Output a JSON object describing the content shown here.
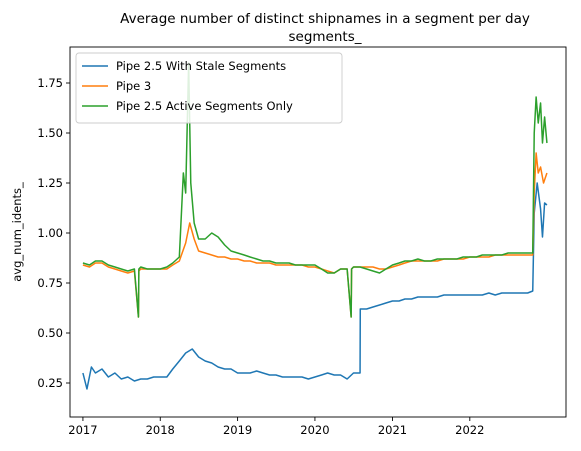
{
  "chart_data": {
    "type": "line",
    "title_line1": "Average number of distinct shipnames in a segment per day",
    "title_line2": "segments_",
    "xlabel": "",
    "ylabel": "avg_num_idents_",
    "x_range": [
      "2016-11-01",
      "2023-03-31"
    ],
    "ylim": [
      0.08,
      1.93
    ],
    "x_ticks": [
      {
        "date": "2017-01-01",
        "label": "2017"
      },
      {
        "date": "2018-01-01",
        "label": "2018"
      },
      {
        "date": "2019-01-01",
        "label": "2019"
      },
      {
        "date": "2020-01-01",
        "label": "2020"
      },
      {
        "date": "2021-01-01",
        "label": "2021"
      },
      {
        "date": "2022-01-01",
        "label": "2022"
      }
    ],
    "y_ticks": [
      {
        "value": 0.25,
        "label": "0.25"
      },
      {
        "value": 0.5,
        "label": "0.50"
      },
      {
        "value": 0.75,
        "label": "0.75"
      },
      {
        "value": 1.0,
        "label": "1.00"
      },
      {
        "value": 1.25,
        "label": "1.25"
      },
      {
        "value": 1.5,
        "label": "1.50"
      },
      {
        "value": 1.75,
        "label": "1.75"
      }
    ],
    "grid": false,
    "legend_position": "upper-left",
    "series": [
      {
        "name": "Pipe 2.5 With Stale Segments",
        "color": "#1f77b4",
        "points": [
          [
            "2017-01-01",
            0.3
          ],
          [
            "2017-01-20",
            0.22
          ],
          [
            "2017-02-10",
            0.33
          ],
          [
            "2017-03-01",
            0.3
          ],
          [
            "2017-04-01",
            0.32
          ],
          [
            "2017-05-01",
            0.28
          ],
          [
            "2017-06-01",
            0.3
          ],
          [
            "2017-07-01",
            0.27
          ],
          [
            "2017-08-01",
            0.28
          ],
          [
            "2017-09-01",
            0.26
          ],
          [
            "2017-10-01",
            0.27
          ],
          [
            "2017-11-01",
            0.27
          ],
          [
            "2017-12-01",
            0.28
          ],
          [
            "2018-01-01",
            0.28
          ],
          [
            "2018-02-01",
            0.28
          ],
          [
            "2018-03-01",
            0.32
          ],
          [
            "2018-04-01",
            0.36
          ],
          [
            "2018-05-01",
            0.4
          ],
          [
            "2018-06-01",
            0.42
          ],
          [
            "2018-07-01",
            0.38
          ],
          [
            "2018-08-01",
            0.36
          ],
          [
            "2018-09-01",
            0.35
          ],
          [
            "2018-10-01",
            0.33
          ],
          [
            "2018-11-01",
            0.32
          ],
          [
            "2018-12-01",
            0.32
          ],
          [
            "2019-01-01",
            0.3
          ],
          [
            "2019-02-01",
            0.3
          ],
          [
            "2019-03-01",
            0.3
          ],
          [
            "2019-04-01",
            0.31
          ],
          [
            "2019-05-01",
            0.3
          ],
          [
            "2019-06-01",
            0.29
          ],
          [
            "2019-07-01",
            0.29
          ],
          [
            "2019-08-01",
            0.28
          ],
          [
            "2019-09-01",
            0.28
          ],
          [
            "2019-10-01",
            0.28
          ],
          [
            "2019-11-01",
            0.28
          ],
          [
            "2019-12-01",
            0.27
          ],
          [
            "2020-01-01",
            0.28
          ],
          [
            "2020-02-01",
            0.29
          ],
          [
            "2020-03-01",
            0.3
          ],
          [
            "2020-04-01",
            0.29
          ],
          [
            "2020-05-01",
            0.29
          ],
          [
            "2020-06-01",
            0.27
          ],
          [
            "2020-07-01",
            0.3
          ],
          [
            "2020-08-01",
            0.3
          ],
          [
            "2020-08-02",
            0.62
          ],
          [
            "2020-09-01",
            0.62
          ],
          [
            "2020-10-01",
            0.63
          ],
          [
            "2020-11-01",
            0.64
          ],
          [
            "2020-12-01",
            0.65
          ],
          [
            "2021-01-01",
            0.66
          ],
          [
            "2021-02-01",
            0.66
          ],
          [
            "2021-03-01",
            0.67
          ],
          [
            "2021-04-01",
            0.67
          ],
          [
            "2021-05-01",
            0.68
          ],
          [
            "2021-06-01",
            0.68
          ],
          [
            "2021-07-01",
            0.68
          ],
          [
            "2021-08-01",
            0.68
          ],
          [
            "2021-09-01",
            0.69
          ],
          [
            "2021-10-01",
            0.69
          ],
          [
            "2021-11-01",
            0.69
          ],
          [
            "2021-12-01",
            0.69
          ],
          [
            "2022-01-01",
            0.69
          ],
          [
            "2022-02-01",
            0.69
          ],
          [
            "2022-03-01",
            0.69
          ],
          [
            "2022-04-01",
            0.7
          ],
          [
            "2022-05-01",
            0.69
          ],
          [
            "2022-06-01",
            0.7
          ],
          [
            "2022-07-01",
            0.7
          ],
          [
            "2022-08-01",
            0.7
          ],
          [
            "2022-09-01",
            0.7
          ],
          [
            "2022-10-01",
            0.7
          ],
          [
            "2022-10-25",
            0.71
          ],
          [
            "2022-11-01",
            1.1
          ],
          [
            "2022-11-15",
            1.25
          ],
          [
            "2022-12-01",
            1.12
          ],
          [
            "2022-12-10",
            0.98
          ],
          [
            "2022-12-20",
            1.15
          ],
          [
            "2022-12-31",
            1.14
          ]
        ]
      },
      {
        "name": "Pipe 3",
        "color": "#ff7f0e",
        "points": [
          [
            "2017-01-01",
            0.84
          ],
          [
            "2017-02-01",
            0.83
          ],
          [
            "2017-03-01",
            0.85
          ],
          [
            "2017-04-01",
            0.85
          ],
          [
            "2017-05-01",
            0.83
          ],
          [
            "2017-06-01",
            0.82
          ],
          [
            "2017-07-01",
            0.81
          ],
          [
            "2017-08-01",
            0.8
          ],
          [
            "2017-09-01",
            0.81
          ],
          [
            "2017-09-20",
            0.58
          ],
          [
            "2017-09-22",
            0.81
          ],
          [
            "2017-10-01",
            0.82
          ],
          [
            "2017-11-01",
            0.82
          ],
          [
            "2017-12-01",
            0.82
          ],
          [
            "2018-01-01",
            0.82
          ],
          [
            "2018-02-01",
            0.82
          ],
          [
            "2018-03-01",
            0.84
          ],
          [
            "2018-04-01",
            0.86
          ],
          [
            "2018-05-01",
            0.95
          ],
          [
            "2018-05-20",
            1.05
          ],
          [
            "2018-06-10",
            0.97
          ],
          [
            "2018-07-01",
            0.91
          ],
          [
            "2018-08-01",
            0.9
          ],
          [
            "2018-09-01",
            0.89
          ],
          [
            "2018-10-01",
            0.88
          ],
          [
            "2018-11-01",
            0.88
          ],
          [
            "2018-12-01",
            0.87
          ],
          [
            "2019-01-01",
            0.87
          ],
          [
            "2019-02-01",
            0.86
          ],
          [
            "2019-03-01",
            0.86
          ],
          [
            "2019-04-01",
            0.85
          ],
          [
            "2019-05-01",
            0.85
          ],
          [
            "2019-06-01",
            0.85
          ],
          [
            "2019-07-01",
            0.84
          ],
          [
            "2019-08-01",
            0.84
          ],
          [
            "2019-09-01",
            0.84
          ],
          [
            "2019-10-01",
            0.84
          ],
          [
            "2019-11-01",
            0.84
          ],
          [
            "2019-12-01",
            0.83
          ],
          [
            "2020-01-01",
            0.83
          ],
          [
            "2020-02-01",
            0.82
          ],
          [
            "2020-03-01",
            0.81
          ],
          [
            "2020-04-01",
            0.8
          ],
          [
            "2020-05-01",
            0.82
          ],
          [
            "2020-06-01",
            0.82
          ],
          [
            "2020-06-20",
            0.58
          ],
          [
            "2020-06-22",
            0.82
          ],
          [
            "2020-07-01",
            0.83
          ],
          [
            "2020-08-01",
            0.83
          ],
          [
            "2020-09-01",
            0.83
          ],
          [
            "2020-10-01",
            0.83
          ],
          [
            "2020-11-01",
            0.82
          ],
          [
            "2020-12-01",
            0.82
          ],
          [
            "2021-01-01",
            0.83
          ],
          [
            "2021-02-01",
            0.84
          ],
          [
            "2021-03-01",
            0.85
          ],
          [
            "2021-04-01",
            0.86
          ],
          [
            "2021-05-01",
            0.86
          ],
          [
            "2021-06-01",
            0.86
          ],
          [
            "2021-07-01",
            0.86
          ],
          [
            "2021-08-01",
            0.86
          ],
          [
            "2021-09-01",
            0.87
          ],
          [
            "2021-10-01",
            0.87
          ],
          [
            "2021-11-01",
            0.87
          ],
          [
            "2021-12-01",
            0.87
          ],
          [
            "2022-01-01",
            0.88
          ],
          [
            "2022-02-01",
            0.88
          ],
          [
            "2022-03-01",
            0.88
          ],
          [
            "2022-04-01",
            0.88
          ],
          [
            "2022-05-01",
            0.89
          ],
          [
            "2022-06-01",
            0.89
          ],
          [
            "2022-07-01",
            0.89
          ],
          [
            "2022-08-01",
            0.89
          ],
          [
            "2022-09-01",
            0.89
          ],
          [
            "2022-10-01",
            0.89
          ],
          [
            "2022-10-25",
            0.89
          ],
          [
            "2022-11-01",
            1.2
          ],
          [
            "2022-11-10",
            1.4
          ],
          [
            "2022-11-20",
            1.3
          ],
          [
            "2022-12-01",
            1.33
          ],
          [
            "2022-12-15",
            1.25
          ],
          [
            "2022-12-31",
            1.3
          ]
        ]
      },
      {
        "name": "Pipe 2.5 Active Segments Only",
        "color": "#2ca02c",
        "points": [
          [
            "2017-01-01",
            0.85
          ],
          [
            "2017-02-01",
            0.84
          ],
          [
            "2017-03-01",
            0.86
          ],
          [
            "2017-04-01",
            0.86
          ],
          [
            "2017-05-01",
            0.84
          ],
          [
            "2017-06-01",
            0.83
          ],
          [
            "2017-07-01",
            0.82
          ],
          [
            "2017-08-01",
            0.81
          ],
          [
            "2017-09-01",
            0.82
          ],
          [
            "2017-09-20",
            0.58
          ],
          [
            "2017-09-22",
            0.82
          ],
          [
            "2017-10-01",
            0.83
          ],
          [
            "2017-11-01",
            0.82
          ],
          [
            "2017-12-01",
            0.82
          ],
          [
            "2018-01-01",
            0.82
          ],
          [
            "2018-02-01",
            0.83
          ],
          [
            "2018-03-01",
            0.85
          ],
          [
            "2018-04-01",
            0.88
          ],
          [
            "2018-04-20",
            1.3
          ],
          [
            "2018-05-01",
            1.2
          ],
          [
            "2018-05-15",
            1.85
          ],
          [
            "2018-05-25",
            1.25
          ],
          [
            "2018-06-10",
            1.05
          ],
          [
            "2018-07-01",
            0.97
          ],
          [
            "2018-08-01",
            0.97
          ],
          [
            "2018-09-01",
            1.0
          ],
          [
            "2018-10-01",
            0.98
          ],
          [
            "2018-11-01",
            0.94
          ],
          [
            "2018-12-01",
            0.91
          ],
          [
            "2019-01-01",
            0.9
          ],
          [
            "2019-02-01",
            0.89
          ],
          [
            "2019-03-01",
            0.88
          ],
          [
            "2019-04-01",
            0.87
          ],
          [
            "2019-05-01",
            0.86
          ],
          [
            "2019-06-01",
            0.86
          ],
          [
            "2019-07-01",
            0.85
          ],
          [
            "2019-08-01",
            0.85
          ],
          [
            "2019-09-01",
            0.85
          ],
          [
            "2019-10-01",
            0.84
          ],
          [
            "2019-11-01",
            0.84
          ],
          [
            "2019-12-01",
            0.84
          ],
          [
            "2020-01-01",
            0.84
          ],
          [
            "2020-02-01",
            0.82
          ],
          [
            "2020-03-01",
            0.8
          ],
          [
            "2020-04-01",
            0.8
          ],
          [
            "2020-05-01",
            0.82
          ],
          [
            "2020-06-01",
            0.82
          ],
          [
            "2020-06-20",
            0.58
          ],
          [
            "2020-06-22",
            0.82
          ],
          [
            "2020-07-01",
            0.83
          ],
          [
            "2020-08-01",
            0.83
          ],
          [
            "2020-09-01",
            0.82
          ],
          [
            "2020-10-01",
            0.81
          ],
          [
            "2020-11-01",
            0.8
          ],
          [
            "2020-12-01",
            0.82
          ],
          [
            "2021-01-01",
            0.84
          ],
          [
            "2021-02-01",
            0.85
          ],
          [
            "2021-03-01",
            0.86
          ],
          [
            "2021-04-01",
            0.86
          ],
          [
            "2021-05-01",
            0.87
          ],
          [
            "2021-06-01",
            0.86
          ],
          [
            "2021-07-01",
            0.86
          ],
          [
            "2021-08-01",
            0.87
          ],
          [
            "2021-09-01",
            0.87
          ],
          [
            "2021-10-01",
            0.87
          ],
          [
            "2021-11-01",
            0.87
          ],
          [
            "2021-12-01",
            0.88
          ],
          [
            "2022-01-01",
            0.88
          ],
          [
            "2022-02-01",
            0.88
          ],
          [
            "2022-03-01",
            0.89
          ],
          [
            "2022-04-01",
            0.89
          ],
          [
            "2022-05-01",
            0.89
          ],
          [
            "2022-06-01",
            0.89
          ],
          [
            "2022-07-01",
            0.9
          ],
          [
            "2022-08-01",
            0.9
          ],
          [
            "2022-09-01",
            0.9
          ],
          [
            "2022-10-01",
            0.9
          ],
          [
            "2022-10-25",
            0.9
          ],
          [
            "2022-11-01",
            1.5
          ],
          [
            "2022-11-10",
            1.68
          ],
          [
            "2022-11-20",
            1.55
          ],
          [
            "2022-12-01",
            1.65
          ],
          [
            "2022-12-10",
            1.45
          ],
          [
            "2022-12-20",
            1.58
          ],
          [
            "2022-12-31",
            1.45
          ]
        ]
      }
    ]
  }
}
